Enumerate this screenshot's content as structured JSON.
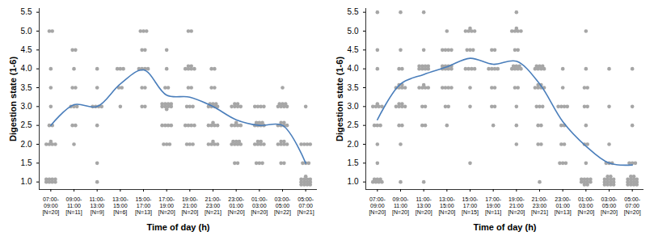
{
  "chart_data": [
    {
      "type": "scatter",
      "ylabel": "Digestion state (1-6)",
      "xlabel": "Time of day (h)",
      "categories": [
        "07:00-09:00",
        "09:00-11:00",
        "11:00-13:00",
        "13:00-15:00",
        "15:00-17:00",
        "17:00-19:00",
        "19:00-21:00",
        "21:00-23:00",
        "23:00-01:00",
        "01:00-03:00",
        "03:00-05:00",
        "05:00-07:00"
      ],
      "sample_sizes": [
        "[N=20]",
        "[N=11]",
        "[N=9]",
        "[N=6]",
        "[N=13]",
        "[N=20]",
        "[N=20]",
        "[N=21]",
        "[N=20]",
        "[N=20]",
        "[N=22]",
        "[N=21]"
      ],
      "ylim": [
        0.8,
        5.6
      ],
      "yticks": [
        1,
        1.5,
        2,
        2.5,
        3,
        3.5,
        4,
        4.5,
        5,
        5.5
      ],
      "series": [
        {
          "type": "scatter",
          "color": "#a6a6a6",
          "values": [
            [
              5,
              5,
              4,
              3.5,
              3,
              2.5,
              2.5,
              2,
              2,
              2,
              2,
              2,
              1,
              1,
              1,
              1,
              1,
              1,
              1,
              1
            ],
            [
              4.5,
              4.5,
              4,
              3.5,
              3.5,
              3,
              3,
              3,
              2.5,
              2.5,
              2
            ],
            [
              4,
              3.5,
              3,
              3,
              3,
              3,
              2.5,
              1.5,
              1
            ],
            [
              4,
              4,
              4,
              3.5,
              3.5,
              3
            ],
            [
              5,
              5,
              5,
              4.5,
              4.5,
              4,
              4,
              4,
              4,
              3.5,
              3.5,
              3,
              3
            ],
            [
              4.5,
              4,
              3.5,
              3.5,
              3,
              3,
              3,
              3,
              3,
              3,
              3,
              2.5,
              2.5,
              2.5,
              2.5,
              2,
              2,
              2,
              3,
              3
            ],
            [
              5,
              5,
              4,
              4,
              4,
              4,
              4,
              4,
              3.5,
              3.5,
              3,
              3,
              3,
              2.5,
              2.5,
              2.5,
              2.5,
              2,
              2,
              2
            ],
            [
              4,
              4,
              3.5,
              3.5,
              3,
              3,
              3,
              3,
              3,
              3,
              2.5,
              2.5,
              2.5,
              2.5,
              2,
              2,
              2,
              2,
              2,
              3,
              2.5
            ],
            [
              3,
              3,
              3,
              3,
              3,
              2.5,
              2.5,
              2.5,
              2.5,
              2.5,
              2,
              2,
              2,
              2,
              2,
              2,
              2,
              1.5,
              1.5,
              3
            ],
            [
              3,
              3,
              3,
              2.5,
              2.5,
              2.5,
              2.5,
              2.5,
              2.5,
              2.5,
              2,
              2,
              2,
              2,
              2,
              2,
              1.5,
              1.5,
              1.5,
              3
            ],
            [
              3.5,
              3,
              3,
              3,
              3,
              3,
              3,
              2.5,
              2.5,
              2.5,
              2.5,
              2.5,
              2,
              2,
              2,
              2,
              2,
              2,
              1.5,
              1.5,
              3,
              2.5
            ],
            [
              3,
              2,
              2,
              2,
              1.5,
              1.5,
              1,
              1,
              1,
              1,
              1,
              1,
              1,
              1,
              1,
              1,
              1,
              1,
              1,
              2,
              1.5
            ]
          ]
        },
        {
          "type": "line",
          "color": "#4a7ebb",
          "values": [
            2.5,
            3.05,
            3.0,
            3.6,
            3.97,
            3.3,
            3.25,
            3.0,
            2.65,
            2.5,
            2.5,
            1.5
          ]
        }
      ]
    },
    {
      "type": "scatter",
      "ylabel": "Digestion state (1-6)",
      "xlabel": "Time of day (h)",
      "categories": [
        "07:00-09:00",
        "09:00-11:00",
        "11:00-13:00",
        "13:00-15:00",
        "15:00-17:00",
        "17:00-19:00",
        "19:00-21:00",
        "21:00-23:00",
        "23:00-01:00",
        "01:00-03:00",
        "03:00-05:00",
        "05:00-07:00"
      ],
      "sample_sizes": [
        "[N=20]",
        "[N=20]",
        "[N=20]",
        "[N=20]",
        "[N=15]",
        "[N=11]",
        "[N=20]",
        "[N=21]",
        "[N=13]",
        "[N=20]",
        "[N=20]",
        "[N=20]"
      ],
      "ylim": [
        0.8,
        5.6
      ],
      "yticks": [
        1,
        1.5,
        2,
        2.5,
        3,
        3.5,
        4,
        4.5,
        5,
        5.5
      ],
      "series": [
        {
          "type": "scatter",
          "color": "#a6a6a6",
          "values": [
            [
              5.5,
              4.5,
              4,
              3,
              3,
              3,
              3,
              3,
              2.5,
              2.5,
              2.5,
              2,
              1.5,
              1,
              1,
              1,
              1,
              1,
              1,
              1
            ],
            [
              5.5,
              4.5,
              4,
              4,
              3.5,
              3.5,
              3.5,
              3.5,
              3.5,
              3,
              3,
              3,
              3,
              3,
              2.5,
              2.5,
              2,
              1,
              3.5,
              3
            ],
            [
              5.5,
              4.5,
              4,
              4,
              4,
              4,
              4,
              4,
              4,
              3.5,
              3.5,
              3.5,
              3.5,
              3.5,
              3,
              3,
              2.5,
              2.5,
              1,
              4
            ],
            [
              5,
              4.5,
              4.5,
              4.5,
              4.5,
              4,
              4,
              4,
              4,
              4,
              4,
              3.5,
              3.5,
              3.5,
              3.5,
              3,
              3,
              2.5,
              4,
              4
            ],
            [
              5,
              5,
              5,
              5,
              5,
              4.5,
              4.5,
              4.5,
              4,
              4,
              4,
              4,
              3.5,
              3,
              1.5
            ],
            [
              4.5,
              4.5,
              4,
              4,
              4,
              3.5,
              3.5,
              3,
              3,
              2.5,
              4
            ],
            [
              5.5,
              5,
              5,
              5,
              5,
              5,
              4.5,
              4.5,
              4,
              4,
              4,
              4,
              4,
              4,
              3.5,
              3.5,
              3,
              2.5,
              2,
              4
            ],
            [
              4,
              4,
              4,
              4,
              4,
              4,
              3.5,
              3.5,
              3.5,
              3.5,
              3.5,
              3,
              3,
              3,
              2.5,
              2.5,
              2,
              2,
              1,
              3.5,
              4
            ],
            [
              4,
              3.5,
              3,
              3,
              3,
              2.5,
              2.5,
              2,
              2,
              1.5,
              1.5,
              1.5,
              3
            ],
            [
              5,
              4,
              3.5,
              3.5,
              3,
              3,
              2.5,
              2,
              2,
              1.5,
              1,
              1,
              1,
              1,
              1,
              1,
              1,
              1,
              1,
              1
            ],
            [
              4,
              3,
              2,
              1.5,
              1.5,
              1.5,
              1,
              1,
              1,
              1,
              1,
              1,
              1,
              1,
              1,
              1,
              1,
              1,
              1,
              1
            ],
            [
              4,
              3,
              2.5,
              1.5,
              1.5,
              1.5,
              1,
              1,
              1,
              1,
              1,
              1,
              1,
              1,
              1,
              1,
              1,
              1,
              1,
              1
            ]
          ]
        },
        {
          "type": "line",
          "color": "#4a7ebb",
          "values": [
            2.65,
            3.6,
            3.85,
            4.05,
            4.28,
            4.12,
            4.2,
            3.6,
            2.6,
            1.95,
            1.5,
            1.45
          ]
        }
      ]
    }
  ]
}
